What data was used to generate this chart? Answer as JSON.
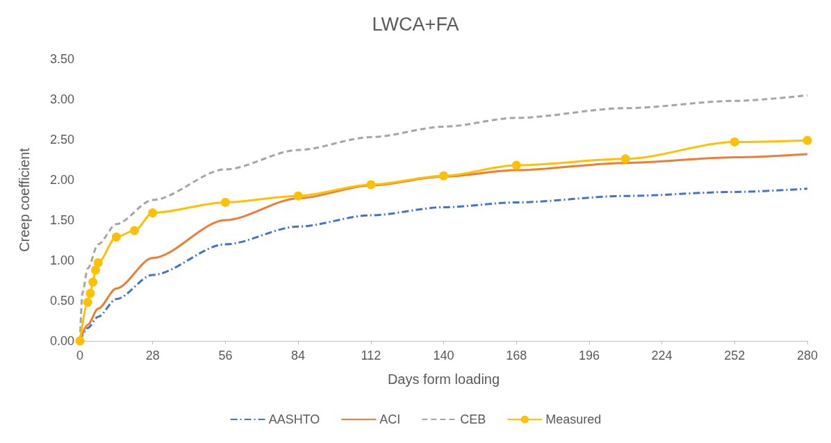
{
  "chart_data": {
    "type": "line",
    "title": "LWCA+FA",
    "xlabel": "Days form loading",
    "ylabel": "Creep coefficient",
    "xlim": [
      0,
      280
    ],
    "xticks": [
      0,
      28,
      56,
      84,
      112,
      140,
      168,
      196,
      224,
      252,
      280
    ],
    "ylim": [
      0,
      3.5
    ],
    "yticks": [
      {
        "value": 0,
        "label": "0.00"
      },
      {
        "value": 0.5,
        "label": "0.50"
      },
      {
        "value": 1,
        "label": "1.00"
      },
      {
        "value": 1.5,
        "label": "1.50"
      },
      {
        "value": 2,
        "label": "2.00"
      },
      {
        "value": 2.5,
        "label": "2.50"
      },
      {
        "value": 3,
        "label": "3.00"
      },
      {
        "value": 3.5,
        "label": "3.50"
      }
    ],
    "legend": "bottom",
    "series": [
      {
        "name": "AASHTO",
        "color": "#4472c4",
        "line_style": "dashdot",
        "marker": "none",
        "x": [
          0,
          3,
          7,
          14,
          28,
          56,
          84,
          112,
          140,
          168,
          210,
          252,
          280
        ],
        "values": [
          0,
          0.16,
          0.3,
          0.52,
          0.82,
          1.2,
          1.42,
          1.56,
          1.66,
          1.72,
          1.8,
          1.85,
          1.89
        ]
      },
      {
        "name": "ACI",
        "color": "#ed7d31",
        "line_style": "solid",
        "marker": "none",
        "x": [
          0,
          3,
          7,
          14,
          28,
          56,
          84,
          112,
          140,
          168,
          210,
          252,
          280
        ],
        "values": [
          0,
          0.2,
          0.4,
          0.65,
          1.03,
          1.5,
          1.77,
          1.93,
          2.04,
          2.12,
          2.21,
          2.28,
          2.32
        ]
      },
      {
        "name": "CEB",
        "color": "#a5a5a5",
        "line_style": "dashed",
        "marker": "none",
        "x": [
          0,
          1,
          3,
          7,
          14,
          28,
          56,
          84,
          112,
          140,
          168,
          210,
          252,
          280
        ],
        "values": [
          0,
          0.6,
          0.9,
          1.2,
          1.45,
          1.75,
          2.13,
          2.37,
          2.53,
          2.66,
          2.77,
          2.89,
          2.98,
          3.05
        ]
      },
      {
        "name": "Measured",
        "color": "#ffc000",
        "line_style": "solid",
        "marker": "circle",
        "x": [
          0,
          3,
          4,
          5,
          6,
          7,
          14,
          21,
          28,
          56,
          84,
          112,
          140,
          168,
          210,
          252,
          280
        ],
        "values": [
          0,
          0.48,
          0.59,
          0.73,
          0.88,
          0.97,
          1.29,
          1.37,
          1.59,
          1.72,
          1.8,
          1.94,
          2.05,
          2.18,
          2.26,
          2.47,
          2.49
        ]
      }
    ]
  }
}
